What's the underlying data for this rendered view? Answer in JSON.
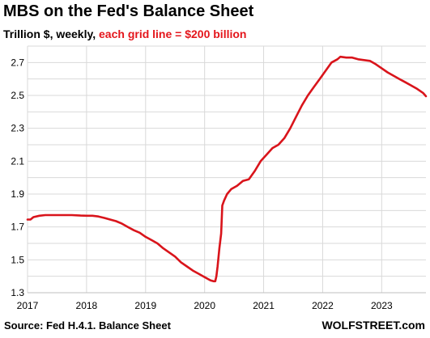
{
  "chart_data": {
    "type": "line",
    "title": "MBS on the Fed's Balance Sheet",
    "subtitle_main": "Trillion $, weekly, ",
    "subtitle_highlight": "each grid line = $200 billion",
    "xlabel": "",
    "ylabel": "",
    "xlim": [
      2017.0,
      2023.75
    ],
    "ylim": [
      1.3,
      2.8
    ],
    "grid": true,
    "legend": "none",
    "series_color": "#d9141b",
    "grid_color": "#d9d9d9",
    "highlight_color": "#e4161c",
    "x_ticks": [
      {
        "value": 2017,
        "label": "2017"
      },
      {
        "value": 2018,
        "label": "2018"
      },
      {
        "value": 2019,
        "label": "2019"
      },
      {
        "value": 2020,
        "label": "2020"
      },
      {
        "value": 2021,
        "label": "2021"
      },
      {
        "value": 2022,
        "label": "2022"
      },
      {
        "value": 2023,
        "label": "2023"
      }
    ],
    "y_ticks": [
      {
        "value": 1.3,
        "label": "1.3"
      },
      {
        "value": 1.5,
        "label": "1.5"
      },
      {
        "value": 1.7,
        "label": "1.7"
      },
      {
        "value": 1.9,
        "label": "1.9"
      },
      {
        "value": 2.1,
        "label": "2.1"
      },
      {
        "value": 2.3,
        "label": "2.3"
      },
      {
        "value": 2.5,
        "label": "2.5"
      },
      {
        "value": 2.7,
        "label": "2.7"
      }
    ],
    "series": [
      {
        "x": [
          2017.0,
          2017.05,
          2017.1,
          2017.2,
          2017.3,
          2017.4,
          2017.5,
          2017.6,
          2017.75,
          2017.9,
          2018.0,
          2018.1,
          2018.2,
          2018.3,
          2018.4,
          2018.5,
          2018.6,
          2018.7,
          2018.8,
          2018.9,
          2019.0,
          2019.1,
          2019.2,
          2019.3,
          2019.4,
          2019.5,
          2019.6,
          2019.7,
          2019.8,
          2019.9,
          2020.0,
          2020.05,
          2020.1,
          2020.15,
          2020.18,
          2020.2,
          2020.22,
          2020.25,
          2020.28,
          2020.3,
          2020.33,
          2020.38,
          2020.45,
          2020.55,
          2020.65,
          2020.75,
          2020.85,
          2020.95,
          2021.05,
          2021.15,
          2021.25,
          2021.35,
          2021.45,
          2021.55,
          2021.65,
          2021.75,
          2021.85,
          2021.95,
          2022.05,
          2022.15,
          2022.25,
          2022.3,
          2022.4,
          2022.5,
          2022.6,
          2022.7,
          2022.8,
          2022.9,
          2023.0,
          2023.1,
          2023.2,
          2023.3,
          2023.4,
          2023.5,
          2023.6,
          2023.7,
          2023.75
        ],
        "y": [
          1.745,
          1.745,
          1.76,
          1.768,
          1.772,
          1.772,
          1.772,
          1.772,
          1.772,
          1.769,
          1.768,
          1.768,
          1.764,
          1.755,
          1.745,
          1.735,
          1.72,
          1.7,
          1.68,
          1.665,
          1.64,
          1.62,
          1.6,
          1.57,
          1.545,
          1.52,
          1.485,
          1.46,
          1.435,
          1.415,
          1.395,
          1.385,
          1.375,
          1.37,
          1.37,
          1.4,
          1.46,
          1.57,
          1.66,
          1.83,
          1.86,
          1.9,
          1.93,
          1.95,
          1.98,
          1.99,
          2.04,
          2.1,
          2.14,
          2.18,
          2.2,
          2.24,
          2.3,
          2.37,
          2.44,
          2.5,
          2.55,
          2.6,
          2.65,
          2.7,
          2.72,
          2.735,
          2.73,
          2.73,
          2.72,
          2.715,
          2.71,
          2.69,
          2.665,
          2.64,
          2.62,
          2.6,
          2.58,
          2.56,
          2.54,
          2.515,
          2.495
        ]
      }
    ]
  },
  "footer": {
    "source": "Source: Fed H.4.1. Balance Sheet",
    "watermark": "WOLFSTREET.com"
  }
}
